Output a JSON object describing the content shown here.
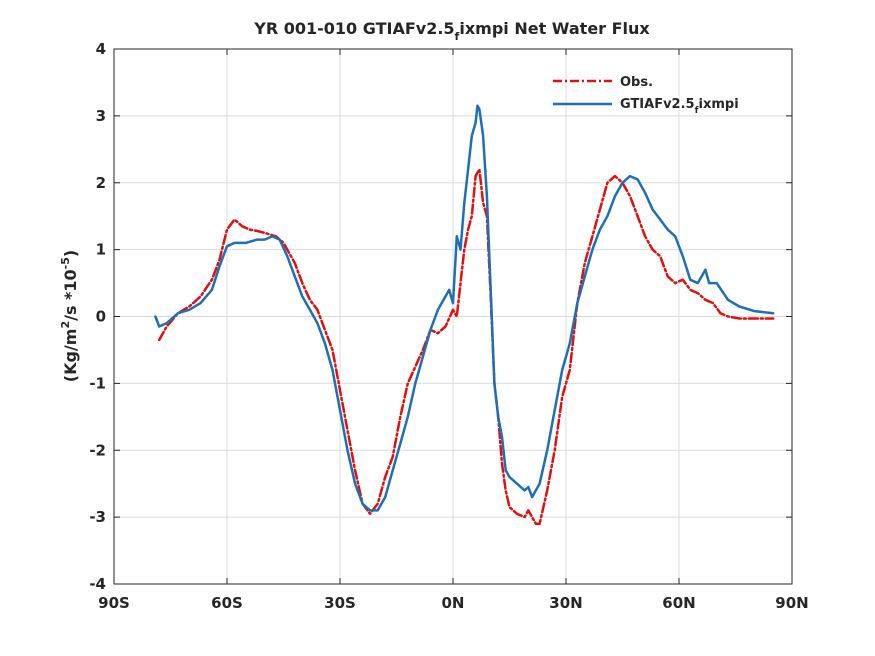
{
  "chart_data": {
    "type": "line",
    "title_main": "YR 001-010 GTIAFv2.5",
    "title_sub": "f",
    "title_rest": "ixmpi  Net Water Flux",
    "ylabel_pre": "(Kg/m",
    "ylabel_sup1": "2",
    "ylabel_mid": "/s *10",
    "ylabel_sup2": "-5",
    "ylabel_post": ")",
    "xlim": [
      -90,
      90
    ],
    "ylim": [
      -4,
      4
    ],
    "xticks": [
      -90,
      -60,
      -30,
      0,
      30,
      60,
      90
    ],
    "xtick_labels": [
      "90S",
      "60S",
      "30S",
      "0N",
      "30N",
      "60N",
      "90N"
    ],
    "yticks": [
      -4,
      -3,
      -2,
      -1,
      0,
      1,
      2,
      3,
      4
    ],
    "ytick_labels": [
      "-4",
      "-3",
      "-2",
      "-1",
      "0",
      "1",
      "2",
      "3",
      "4"
    ],
    "grid": true,
    "legend_position": "top-right",
    "series": [
      {
        "name": "Obs.",
        "legend_main": "Obs.",
        "color": "#e01010",
        "dash": true,
        "x": [
          -78,
          -76,
          -73,
          -70,
          -67,
          -64,
          -62,
          -60,
          -58,
          -56,
          -54,
          -52,
          -50,
          -47,
          -45,
          -42,
          -40,
          -38,
          -36,
          -34,
          -32,
          -30,
          -28,
          -26,
          -24,
          -22,
          -20,
          -18,
          -16,
          -14,
          -12,
          -10,
          -8,
          -6,
          -4,
          -2,
          0,
          1,
          2,
          3,
          4,
          5,
          6,
          7,
          8,
          9,
          10,
          11,
          12,
          13,
          14,
          15,
          17,
          19,
          20,
          22,
          23,
          25,
          27,
          29,
          31,
          33,
          35,
          37,
          39,
          41,
          43,
          45,
          47,
          49,
          51,
          53,
          55,
          57,
          59,
          61,
          63,
          65,
          67,
          69,
          71,
          73,
          76,
          80,
          85
        ],
        "y": [
          -0.35,
          -0.15,
          0.05,
          0.15,
          0.3,
          0.55,
          0.85,
          1.3,
          1.45,
          1.35,
          1.3,
          1.28,
          1.25,
          1.2,
          1.1,
          0.8,
          0.5,
          0.25,
          0.1,
          -0.2,
          -0.5,
          -1.1,
          -1.7,
          -2.3,
          -2.8,
          -2.95,
          -2.8,
          -2.4,
          -2.1,
          -1.5,
          -1.0,
          -0.75,
          -0.5,
          -0.2,
          -0.25,
          -0.15,
          0.1,
          0.0,
          0.5,
          1.0,
          1.3,
          1.5,
          2.1,
          2.2,
          1.7,
          1.5,
          0.3,
          -1.0,
          -1.5,
          -2.2,
          -2.6,
          -2.85,
          -2.95,
          -3.0,
          -2.9,
          -3.1,
          -3.1,
          -2.6,
          -2.0,
          -1.2,
          -0.8,
          0.2,
          0.8,
          1.2,
          1.6,
          2.0,
          2.1,
          2.0,
          1.8,
          1.5,
          1.2,
          1.0,
          0.9,
          0.6,
          0.5,
          0.55,
          0.4,
          0.35,
          0.25,
          0.2,
          0.05,
          0.0,
          -0.03,
          -0.03,
          -0.03
        ]
      },
      {
        "name": "GTIAFv2.5fixmpi",
        "legend_main": "GTIAFv2.5",
        "legend_sub": "f",
        "legend_rest": "ixmpi",
        "color": "#1f6fb4",
        "dash": false,
        "x": [
          -79,
          -78,
          -76,
          -73,
          -70,
          -67,
          -64,
          -62,
          -60,
          -58,
          -55,
          -52,
          -50,
          -48,
          -46,
          -44,
          -42,
          -40,
          -38,
          -36,
          -34,
          -32,
          -30,
          -28,
          -26,
          -24,
          -22,
          -20,
          -18,
          -16,
          -14,
          -12,
          -10,
          -8,
          -6,
          -4,
          -2,
          -1,
          0,
          1,
          2,
          3,
          4,
          5,
          6,
          6.5,
          7,
          8,
          9,
          10,
          11,
          12,
          13,
          14,
          15,
          17,
          19,
          20,
          21,
          23,
          25,
          27,
          29,
          31,
          33,
          35,
          37,
          39,
          41,
          43,
          45,
          47,
          49,
          51,
          53,
          55,
          57,
          59,
          61,
          63,
          65,
          66,
          67,
          68,
          70,
          73,
          76,
          80,
          85
        ],
        "y": [
          0.0,
          -0.15,
          -0.1,
          0.05,
          0.1,
          0.2,
          0.4,
          0.75,
          1.05,
          1.1,
          1.1,
          1.15,
          1.15,
          1.2,
          1.15,
          0.9,
          0.6,
          0.3,
          0.1,
          -0.1,
          -0.4,
          -0.8,
          -1.4,
          -2.0,
          -2.5,
          -2.8,
          -2.9,
          -2.9,
          -2.7,
          -2.3,
          -1.9,
          -1.5,
          -1.0,
          -0.6,
          -0.2,
          0.1,
          0.3,
          0.4,
          0.2,
          1.2,
          1.0,
          1.7,
          2.2,
          2.7,
          2.9,
          3.15,
          3.1,
          2.7,
          1.8,
          0.4,
          -1.0,
          -1.5,
          -1.8,
          -2.3,
          -2.4,
          -2.5,
          -2.6,
          -2.55,
          -2.7,
          -2.5,
          -2.0,
          -1.4,
          -0.8,
          -0.4,
          0.2,
          0.6,
          1.0,
          1.3,
          1.5,
          1.8,
          2.0,
          2.1,
          2.05,
          1.85,
          1.6,
          1.45,
          1.3,
          1.2,
          0.9,
          0.55,
          0.5,
          0.6,
          0.7,
          0.5,
          0.5,
          0.25,
          0.15,
          0.08,
          0.05
        ]
      }
    ]
  }
}
